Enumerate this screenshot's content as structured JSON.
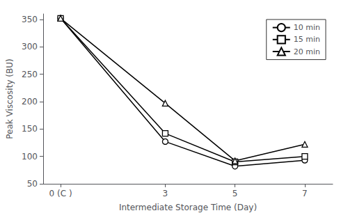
{
  "chart_data": {
    "type": "line",
    "x": [
      0,
      3,
      5,
      7
    ],
    "xticks": [
      {
        "value": 0,
        "label": "0 (C )"
      },
      3,
      5,
      7
    ],
    "xlim": [
      -0.5,
      7.8
    ],
    "ylim": [
      50,
      360
    ],
    "yticks": [
      50,
      100,
      150,
      200,
      250,
      300,
      350
    ],
    "xlabel": "Intermediate Storage Time (Day)",
    "ylabel": "Peak Viscosity (BU)",
    "series": [
      {
        "name": "10 min",
        "values": [
          352,
          127,
          82,
          93
        ],
        "marker": "circle",
        "color": "#000000"
      },
      {
        "name": "15 min",
        "values": [
          352,
          142,
          90,
          100
        ],
        "marker": "square",
        "color": "#000000"
      },
      {
        "name": "20 min",
        "values": [
          352,
          197,
          92,
          122
        ],
        "marker": "triangle",
        "color": "#000000"
      }
    ],
    "legend": "upper right",
    "grid": false
  }
}
